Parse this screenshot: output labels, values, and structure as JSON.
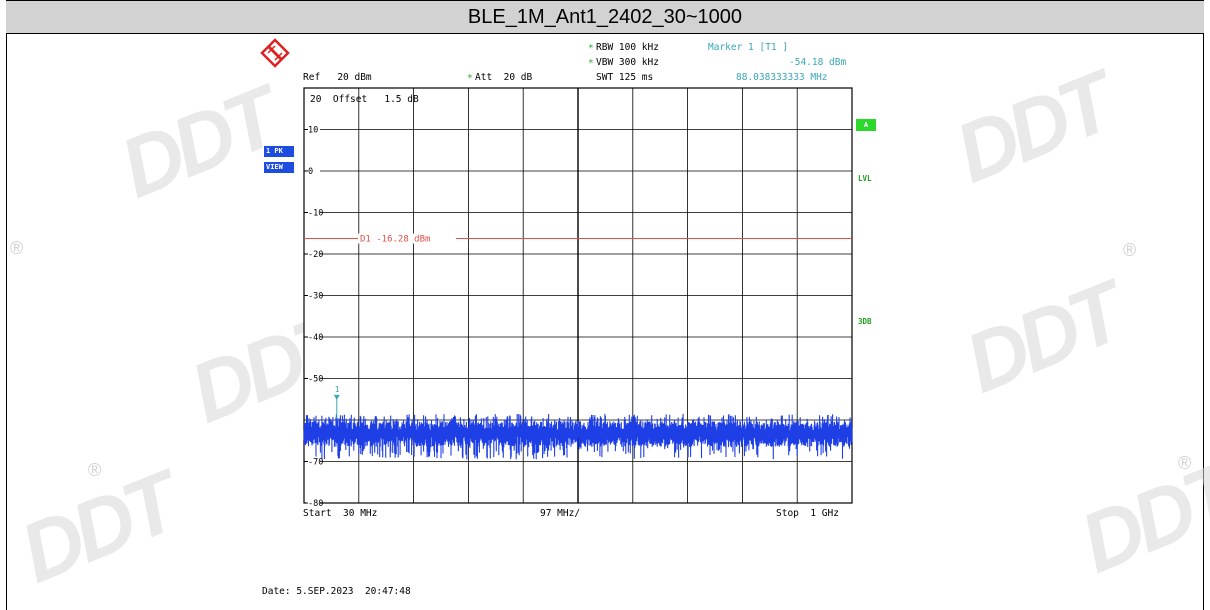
{
  "page": {
    "title": "BLE_1M_Ant1_2402_30~1000",
    "date": "Date: 5.SEP.2023  20:47:48"
  },
  "instrument": {
    "logo": "rohde-schwarz-logo-icon",
    "ref": "Ref   20 dBm",
    "att": "Att  20 dB",
    "rbw": "RBW 100 kHz",
    "vbw": "VBW 300 kHz",
    "swt": "SWT 125 ms",
    "marker_title": "Marker 1 [T1 ]",
    "marker_level": "-54.18 dBm",
    "marker_freq": "88.038333333 MHz",
    "offset": "20  Offset   1.5 dB",
    "side_pk": "1 PK",
    "side_view": "VIEW",
    "right_a": "A",
    "right_lvl": "LVL",
    "right_3db": "3DB",
    "start": "Start  30 MHz",
    "span_div": "97 MHz/",
    "stop": "Stop  1 GHz",
    "watermark_text": "DDT",
    "watermark_reg": "®"
  },
  "colors": {
    "trace": "#1f3fe6",
    "display_line": "#e0504a",
    "grid": "#000000",
    "marker": "#3aa6b9",
    "status_green": "#2bd82b",
    "side_blue": "#1d4ce0"
  },
  "chart_data": {
    "type": "line",
    "title": "BLE_1M_Ant1_2402_30~1000",
    "xlabel": "",
    "ylabel": "",
    "x_start_mhz": 30,
    "x_stop_mhz": 1000,
    "x_div_mhz": 97,
    "ylim": [
      -80,
      20
    ],
    "y_ticks": [
      10,
      0,
      -10,
      -20,
      -30,
      -40,
      -50,
      -60,
      -70,
      -80
    ],
    "y_tick_labels": [
      "10",
      "0",
      "-10",
      "-20",
      "-30",
      "-40",
      "-50",
      "",
      "-70",
      "-80"
    ],
    "grid": true,
    "display_line": {
      "label": "D1  -16.28 dBm",
      "value_dbm": -16.28
    },
    "marker": {
      "label": "1",
      "freq_mhz": 88.038333333,
      "level_dbm": -54.18
    },
    "series": [
      {
        "noise_floor_dbm": -62.5,
        "noise_peak_dbm": -58.5,
        "noise_min_dbm": -68
      }
    ]
  }
}
